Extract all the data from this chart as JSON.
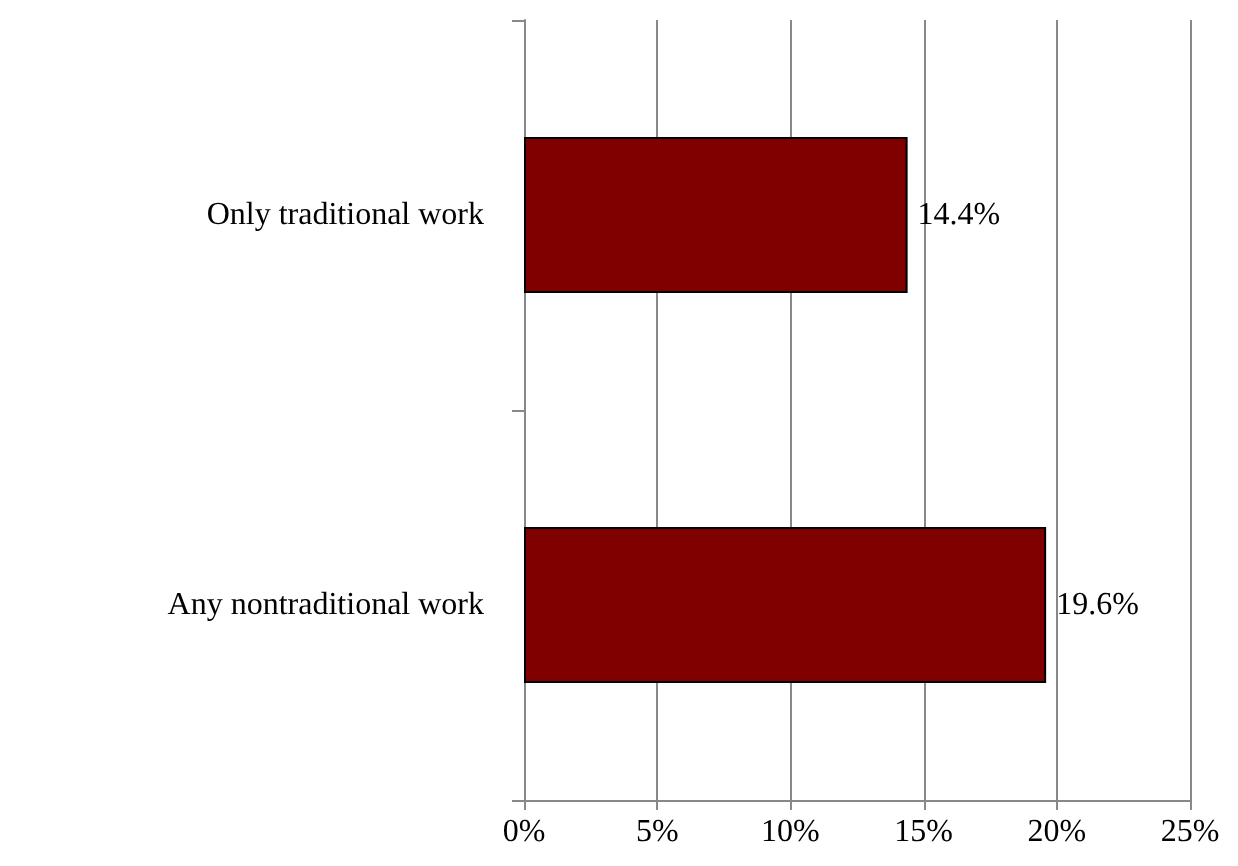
{
  "chart_data": {
    "type": "bar",
    "orientation": "horizontal",
    "categories": [
      "Only traditional work",
      "Any nontraditional work"
    ],
    "values": [
      14.4,
      19.6
    ],
    "color": "#800000",
    "value_labels": [
      "14.4%",
      "19.6%"
    ],
    "xlim": [
      0,
      25
    ],
    "xticks": [
      {
        "value": 0,
        "label": "0%"
      },
      {
        "value": 5,
        "label": "5%"
      },
      {
        "value": 10,
        "label": "10%"
      },
      {
        "value": 15,
        "label": "15%"
      },
      {
        "value": 20,
        "label": "20%"
      },
      {
        "value": 25,
        "label": "25%"
      }
    ],
    "grid": "x"
  }
}
